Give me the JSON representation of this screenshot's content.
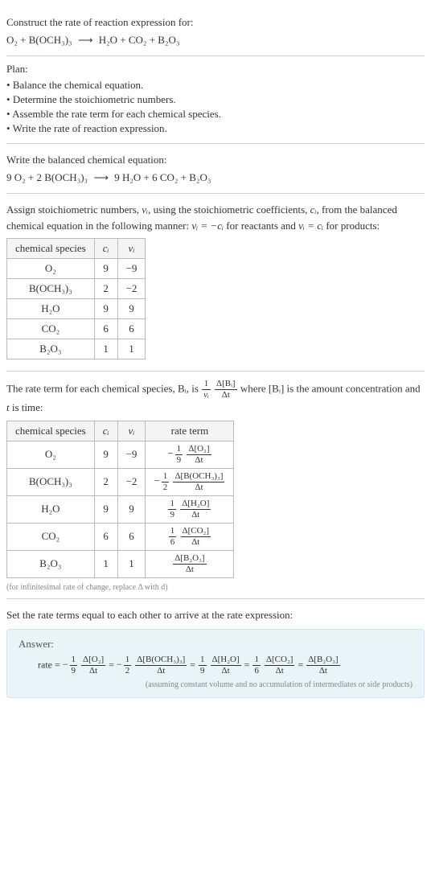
{
  "intro": {
    "line1": "Construct the rate of reaction expression for:",
    "lhs": "O₂ + B(OCH₃)₃",
    "arrow": "⟶",
    "rhs": "H₂O + CO₂ + B₂O₃"
  },
  "plan": {
    "heading": "Plan:",
    "items": [
      "Balance the chemical equation.",
      "Determine the stoichiometric numbers.",
      "Assemble the rate term for each chemical species.",
      "Write the rate of reaction expression."
    ]
  },
  "balanced": {
    "heading": "Write the balanced chemical equation:",
    "lhs": "9 O₂ + 2 B(OCH₃)₃",
    "arrow": "⟶",
    "rhs": "9 H₂O + 6 CO₂ + B₂O₃"
  },
  "stoich": {
    "heading_part1": "Assign stoichiometric numbers, ",
    "heading_nu": "νᵢ",
    "heading_part2": ", using the stoichiometric coefficients, ",
    "heading_c": "cᵢ",
    "heading_part3": ", from the balanced chemical equation in the following manner: ",
    "heading_rel_reac": "νᵢ = −cᵢ",
    "heading_part4": " for reactants and ",
    "heading_rel_prod": "νᵢ = cᵢ",
    "heading_part5": " for products:",
    "headers": [
      "chemical species",
      "cᵢ",
      "νᵢ"
    ],
    "rows": [
      {
        "sp": "O₂",
        "c": "9",
        "nu": "−9"
      },
      {
        "sp": "B(OCH₃)₃",
        "c": "2",
        "nu": "−2"
      },
      {
        "sp": "H₂O",
        "c": "9",
        "nu": "9"
      },
      {
        "sp": "CO₂",
        "c": "6",
        "nu": "6"
      },
      {
        "sp": "B₂O₃",
        "c": "1",
        "nu": "1"
      }
    ]
  },
  "rateterm": {
    "heading_part1": "The rate term for each chemical species, Bᵢ, is ",
    "frac1_num": "1",
    "frac1_den": "νᵢ",
    "frac2_num": "Δ[Bᵢ]",
    "frac2_den": "Δt",
    "heading_part2": " where [Bᵢ] is the amount concentration and ",
    "t_sym": "t",
    "heading_part3": " is time:",
    "headers": [
      "chemical species",
      "cᵢ",
      "νᵢ",
      "rate term"
    ],
    "rows": [
      {
        "sp": "O₂",
        "c": "9",
        "nu": "−9",
        "neg": "−",
        "coef_num": "1",
        "coef_den": "9",
        "d_num": "Δ[O₂]",
        "d_den": "Δt"
      },
      {
        "sp": "B(OCH₃)₃",
        "c": "2",
        "nu": "−2",
        "neg": "−",
        "coef_num": "1",
        "coef_den": "2",
        "d_num": "Δ[B(OCH₃)₃]",
        "d_den": "Δt"
      },
      {
        "sp": "H₂O",
        "c": "9",
        "nu": "9",
        "neg": "",
        "coef_num": "1",
        "coef_den": "9",
        "d_num": "Δ[H₂O]",
        "d_den": "Δt"
      },
      {
        "sp": "CO₂",
        "c": "6",
        "nu": "6",
        "neg": "",
        "coef_num": "1",
        "coef_den": "6",
        "d_num": "Δ[CO₂]",
        "d_den": "Δt"
      },
      {
        "sp": "B₂O₃",
        "c": "1",
        "nu": "1",
        "neg": "",
        "coef_num": "",
        "coef_den": "",
        "d_num": "Δ[B₂O₃]",
        "d_den": "Δt"
      }
    ],
    "note": "(for infinitesimal rate of change, replace Δ with d)"
  },
  "final": {
    "heading": "Set the rate terms equal to each other to arrive at the rate expression:",
    "answer_label": "Answer:",
    "rate_prefix": "rate = ",
    "eq": " = ",
    "terms": [
      {
        "neg": "−",
        "coef_num": "1",
        "coef_den": "9",
        "d_num": "Δ[O₂]",
        "d_den": "Δt"
      },
      {
        "neg": "−",
        "coef_num": "1",
        "coef_den": "2",
        "d_num": "Δ[B(OCH₃)₃]",
        "d_den": "Δt"
      },
      {
        "neg": "",
        "coef_num": "1",
        "coef_den": "9",
        "d_num": "Δ[H₂O]",
        "d_den": "Δt"
      },
      {
        "neg": "",
        "coef_num": "1",
        "coef_den": "6",
        "d_num": "Δ[CO₂]",
        "d_den": "Δt"
      },
      {
        "neg": "",
        "coef_num": "",
        "coef_den": "",
        "d_num": "Δ[B₂O₃]",
        "d_den": "Δt"
      }
    ],
    "answer_note": "(assuming constant volume and no accumulation of intermediates or side products)"
  }
}
